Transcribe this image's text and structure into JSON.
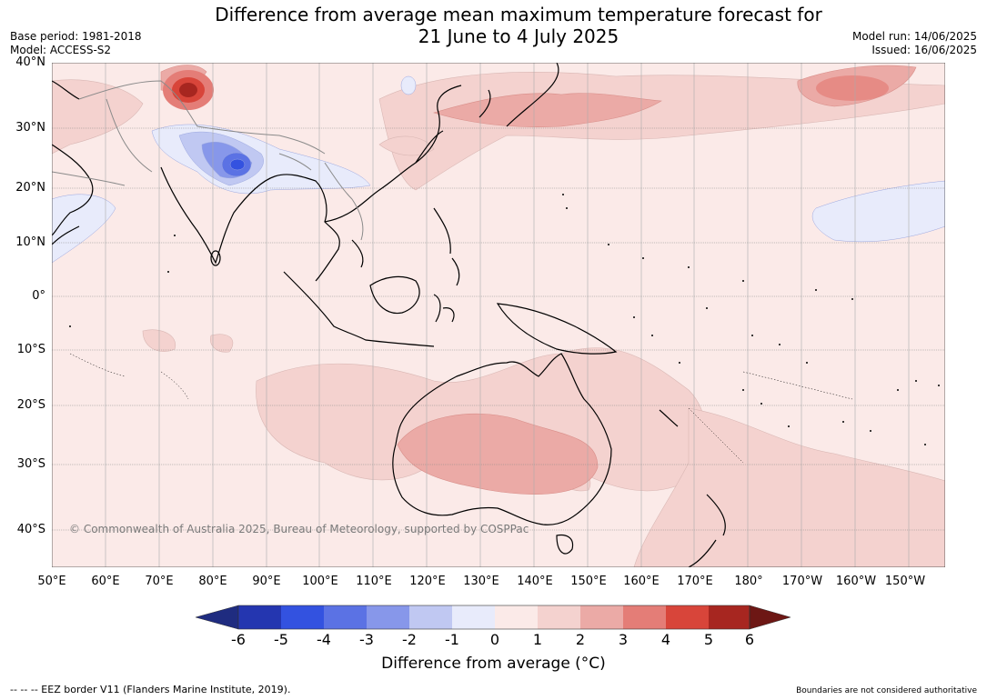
{
  "title": {
    "line1": "Difference from average mean maximum temperature forecast for",
    "line2": "21 June to 4 July 2025"
  },
  "meta_left": {
    "base_period": "Base period: 1981-2018",
    "model": "Model: ACCESS-S2"
  },
  "meta_right": {
    "model_run": "Model run: 14/06/2025",
    "issued": "Issued: 16/06/2025"
  },
  "map": {
    "lat_labels": [
      "40°N",
      "30°N",
      "20°N",
      "10°N",
      "0°",
      "10°S",
      "20°S",
      "30°S",
      "40°S"
    ],
    "lon_labels": [
      "50°E",
      "60°E",
      "70°E",
      "80°E",
      "90°E",
      "100°E",
      "110°E",
      "120°E",
      "130°E",
      "140°E",
      "150°E",
      "160°E",
      "170°E",
      "180°",
      "170°W",
      "160°W",
      "150°W"
    ],
    "copyright": "© Commonwealth of Australia 2025, Bureau of Meteorology, supported by COSPPac",
    "ocean_color": "#fbeae8"
  },
  "colorbar": {
    "ticks": [
      "-6",
      "-5",
      "-4",
      "-3",
      "-2",
      "-1",
      "0",
      "1",
      "2",
      "3",
      "4",
      "5",
      "6"
    ],
    "colors": [
      "#1f2c80",
      "#2436b0",
      "#3352e0",
      "#5b72e4",
      "#8797ea",
      "#c0c8f2",
      "#e8ebfb",
      "#fbeae8",
      "#f4d2cf",
      "#ebaaa6",
      "#e47d77",
      "#d8453a",
      "#a72620",
      "#6d1714"
    ],
    "label": "Difference from average (°C)"
  },
  "footer": {
    "eez": "-- -- -- EEZ border V11 (Flanders Marine Institute, 2019).",
    "disclaimer": "Boundaries are not considered authoritative"
  }
}
